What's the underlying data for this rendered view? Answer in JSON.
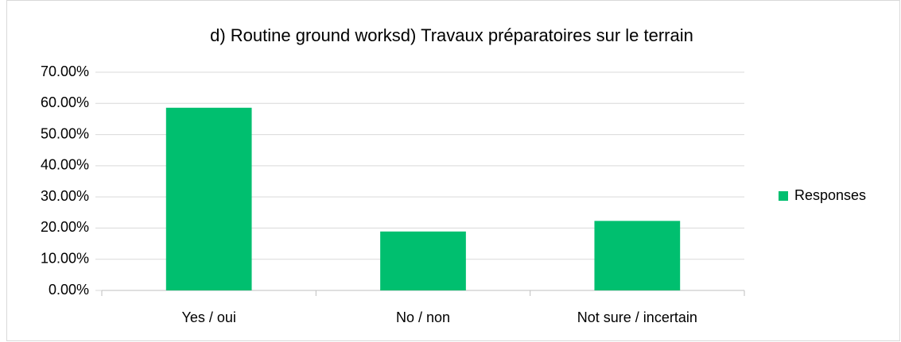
{
  "chart_data": {
    "type": "bar",
    "title": "d) Routine ground worksd) Travaux préparatoires sur le terrain",
    "categories": [
      "Yes / oui",
      "No / non",
      "Not sure / incertain"
    ],
    "series": [
      {
        "name": "Responses",
        "color": "#00bf6f",
        "values": [
          58.6,
          18.9,
          22.3
        ]
      }
    ],
    "ylim": [
      0,
      70
    ],
    "yticks": [
      {
        "value": 0,
        "label": "0.00%"
      },
      {
        "value": 10,
        "label": "10.00%"
      },
      {
        "value": 20,
        "label": "20.00%"
      },
      {
        "value": 30,
        "label": "30.00%"
      },
      {
        "value": 40,
        "label": "40.00%"
      },
      {
        "value": 50,
        "label": "50.00%"
      },
      {
        "value": 60,
        "label": "60.00%"
      },
      {
        "value": 70,
        "label": "70.00%"
      }
    ],
    "grid": true,
    "legend": "right"
  }
}
